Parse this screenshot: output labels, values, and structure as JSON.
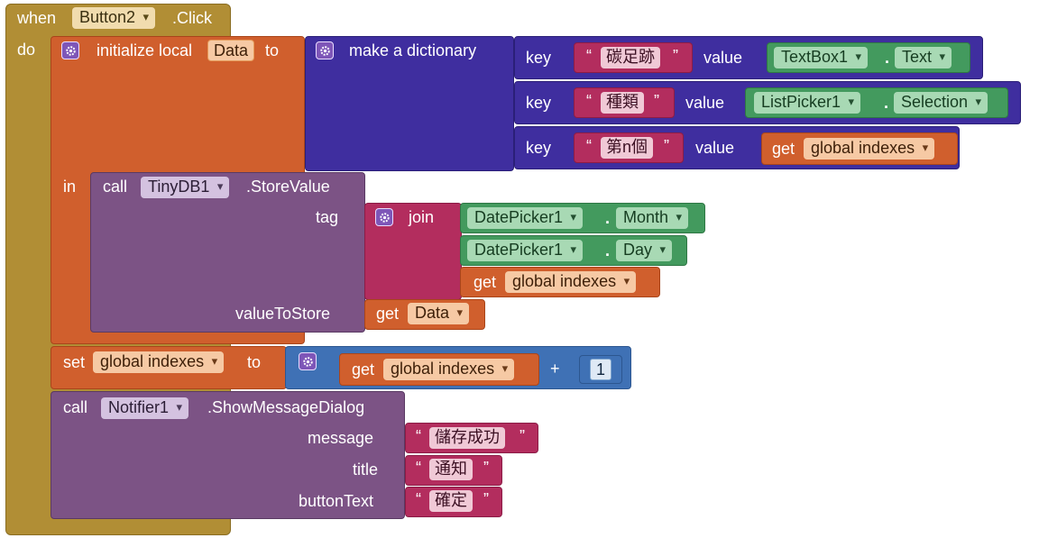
{
  "event": {
    "when_label": "when",
    "component": "Button2",
    "event_name": ".Click",
    "do_label": "do"
  },
  "init_local": {
    "label": "initialize local",
    "var_name": "Data",
    "to_label": "to",
    "in_label": "in"
  },
  "dictionary": {
    "label": "make a dictionary",
    "pairs": [
      {
        "key_label": "key",
        "key_text": "碳足跡",
        "value_label": "value",
        "value_component": "TextBox1",
        "value_property": "Text"
      },
      {
        "key_label": "key",
        "key_text": "種類",
        "value_label": "value",
        "value_component": "ListPicker1",
        "value_property": "Selection"
      },
      {
        "key_label": "key",
        "key_text": "第n個",
        "value_label": "value",
        "get_label": "get",
        "get_var": "global indexes"
      }
    ]
  },
  "store_value": {
    "call_label": "call",
    "component": "TinyDB1",
    "method": ".StoreValue",
    "tag_label": "tag",
    "value_label": "valueToStore",
    "join_label": "join",
    "join_items": [
      {
        "component": "DatePicker1",
        "property": "Month"
      },
      {
        "component": "DatePicker1",
        "property": "Day"
      }
    ],
    "join_get_label": "get",
    "join_get_var": "global indexes",
    "value_get_label": "get",
    "value_get_var": "Data"
  },
  "set_global": {
    "set_label": "set",
    "var": "global indexes",
    "to_label": "to",
    "get_label": "get",
    "get_var": "global indexes",
    "op": "+",
    "number": "1"
  },
  "notifier": {
    "call_label": "call",
    "component": "Notifier1",
    "method": ".ShowMessageDialog",
    "message_label": "message",
    "message_text": "儲存成功",
    "title_label": "title",
    "title_text": "通知",
    "button_label": "buttonText",
    "button_text": "確定"
  },
  "quotes": {
    "open": "“",
    "close": "”"
  },
  "dot": ".",
  "colors": {
    "event": "#b18e35",
    "variable": "#d05f2d",
    "dictionary": "#3f2e9f",
    "text": "#b32d5e",
    "component": "#439a5e",
    "procedure_call": "#7c5385",
    "math": "#3f71b5"
  },
  "icons": [
    "gear-icon",
    "dropdown-arrow-icon"
  ]
}
